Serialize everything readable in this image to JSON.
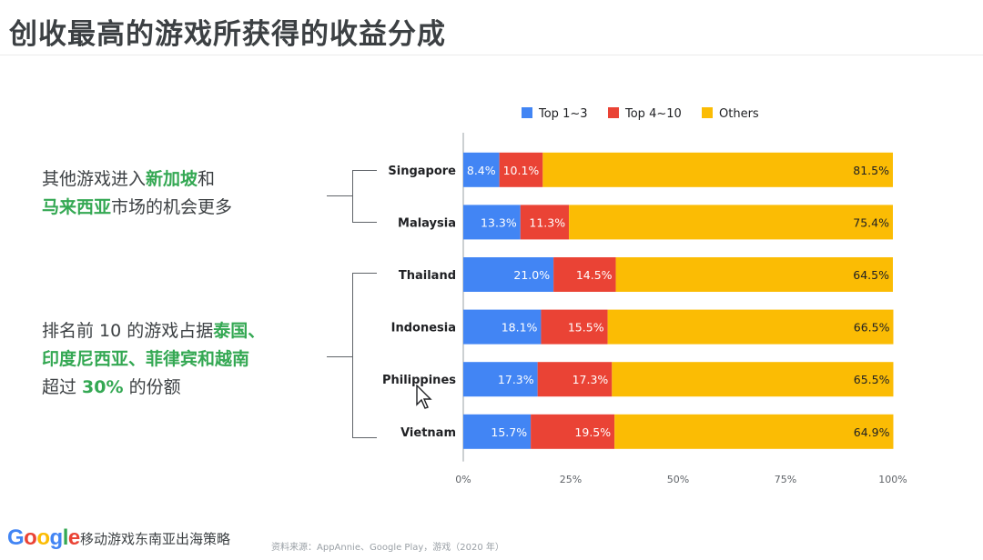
{
  "title": "创收最高的游戏所获得的收益分成",
  "annotations": {
    "group1": {
      "line1_pre": "其他游戏进入",
      "line1_hl": "新加坡",
      "line1_post": "和",
      "line2_hl": "马来西亚",
      "line2_post": "市场的机会更多"
    },
    "group2": {
      "line1_pre": "排名前 10 的游戏占据",
      "line1_hl": "泰国、",
      "line2_hl": "印度尼西亚、菲律宾和越南",
      "line3_pre": "超过 ",
      "line3_hl": "30%",
      "line3_post": " 的份额"
    }
  },
  "footer": {
    "logo": "Google",
    "subtitle": "移动游戏东南亚出海策略",
    "source": "资料来源：AppAnnie、Google Play，游戏（2020 年）"
  },
  "colors": {
    "top1_3": "#4285f4",
    "top4_10": "#ea4335",
    "others": "#fbbc04",
    "green": "#34a853"
  },
  "chart_data": {
    "type": "bar",
    "orientation": "horizontal",
    "stacked": true,
    "categories": [
      "Singapore",
      "Malaysia",
      "Thailand",
      "Indonesia",
      "Philippines",
      "Vietnam"
    ],
    "series": [
      {
        "name": "Top 1~3",
        "values": [
          8.4,
          13.3,
          21.0,
          18.1,
          17.3,
          15.7
        ],
        "labels": [
          "8.4%",
          "13.3%",
          "21.0%",
          "18.1%",
          "17.3%",
          "15.7%"
        ]
      },
      {
        "name": "Top 4~10",
        "values": [
          10.1,
          11.3,
          14.5,
          15.5,
          17.3,
          19.5
        ],
        "labels": [
          "10.1%",
          "11.3%",
          "14.5%",
          "15.5%",
          "17.3%",
          "19.5%"
        ]
      },
      {
        "name": "Others",
        "values": [
          81.5,
          75.4,
          64.5,
          66.5,
          65.5,
          64.9
        ],
        "labels": [
          "81.5%",
          "75.4%",
          "64.5%",
          "66.5%",
          "65.5%",
          "64.9%"
        ]
      }
    ],
    "xlim": [
      0,
      100
    ],
    "xticks": [
      "0%",
      "25%",
      "50%",
      "75%",
      "100%"
    ],
    "legend": "top",
    "grid": false
  }
}
